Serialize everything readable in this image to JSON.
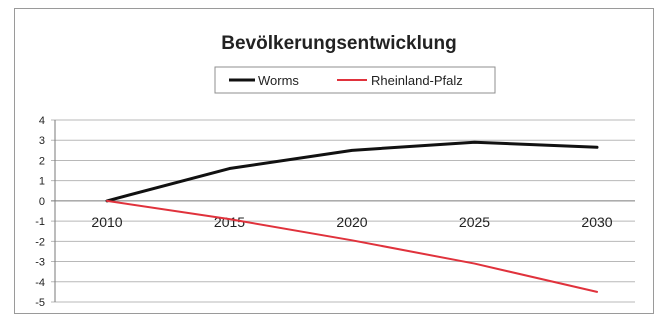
{
  "chart_data": {
    "type": "line",
    "title": "Bevölkerungsentwicklung",
    "xlabel": "",
    "ylabel": "",
    "categories": [
      "2010",
      "2015",
      "2020",
      "2025",
      "2030"
    ],
    "series": [
      {
        "name": "Worms",
        "values": [
          0,
          1.6,
          2.5,
          2.9,
          2.65
        ],
        "color": "#111111"
      },
      {
        "name": "Rheinland-Pfalz",
        "values": [
          0,
          -0.9,
          -1.95,
          -3.1,
          -4.5
        ],
        "color": "#e0323c"
      }
    ],
    "ylim": [
      -5,
      4
    ],
    "yticks": [
      "4",
      "3",
      "2",
      "1",
      "0",
      "-1",
      "-2",
      "-3",
      "-4",
      "-5"
    ],
    "grid": true,
    "legend_position": "top-center"
  }
}
